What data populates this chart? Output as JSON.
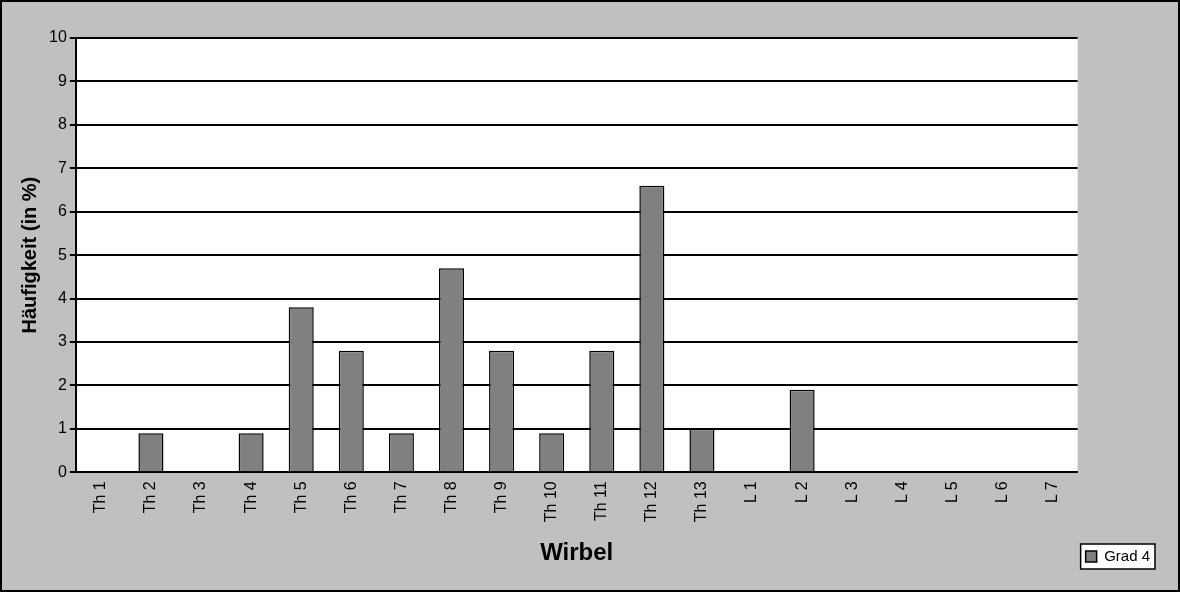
{
  "chart_data": {
    "type": "bar",
    "xlabel": "Wirbel",
    "ylabel": "Häufigkeit (in %)",
    "categories": [
      "Th 1",
      "Th 2",
      "Th 3",
      "Th 4",
      "Th 5",
      "Th 6",
      "Th 7",
      "Th 8",
      "Th 9",
      "Th 10",
      "Th 11",
      "Th 12",
      "Th 13",
      "L 1",
      "L 2",
      "L 3",
      "L 4",
      "L 5",
      "L 6",
      "L 7"
    ],
    "series": [
      {
        "name": "Grad 4",
        "color": "#808080",
        "values": [
          0,
          0.9,
          0,
          0.9,
          3.8,
          2.8,
          0.9,
          4.7,
          2.8,
          0.9,
          2.8,
          6.6,
          1.0,
          0,
          1.9,
          0,
          0,
          0,
          0,
          0
        ]
      }
    ],
    "ylim": [
      0,
      10
    ],
    "yticks": [
      0,
      1,
      2,
      3,
      4,
      5,
      6,
      7,
      8,
      9,
      10
    ],
    "grid": "y",
    "legend": "bottom right"
  }
}
